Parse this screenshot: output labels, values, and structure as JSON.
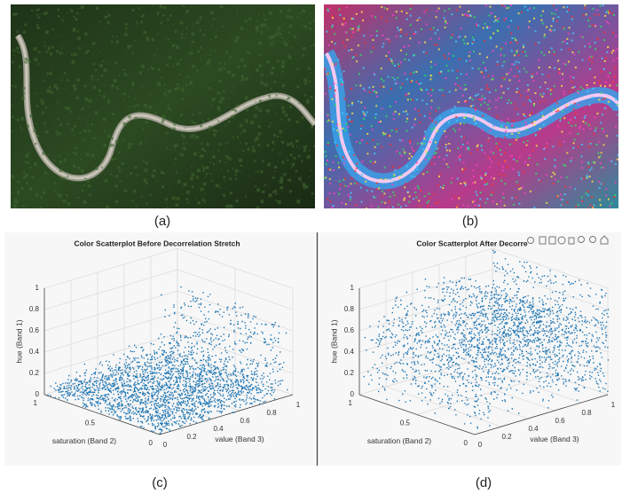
{
  "panels": [
    {
      "label": "(a)"
    },
    {
      "label": "(b)"
    },
    {
      "label": "(c)",
      "title": "Color Scatterplot Before Decorrelation Stretch",
      "z_label": "hue (Band 1)",
      "y_label": "saturation (Band 2)",
      "x_label": "value (Band 3)",
      "zticks": [
        0,
        0.2,
        0.4,
        0.6,
        0.8,
        1
      ],
      "yticks": [
        0,
        0.5,
        1
      ],
      "xticks": [
        0,
        0.2,
        0.4,
        0.6,
        0.8,
        1
      ]
    },
    {
      "label": "(d)",
      "title": "Color Scatterplot After Decorre",
      "z_label": "hue (Band 1)",
      "y_label": "saturation (Band 2)",
      "x_label": "value (Band 3)",
      "zticks": [
        0,
        0.2,
        0.4,
        0.6,
        0.8,
        1
      ],
      "yticks": [
        0,
        0.5,
        1
      ],
      "xticks": [
        0,
        0.2,
        0.4,
        0.6,
        0.8,
        1
      ]
    }
  ]
}
